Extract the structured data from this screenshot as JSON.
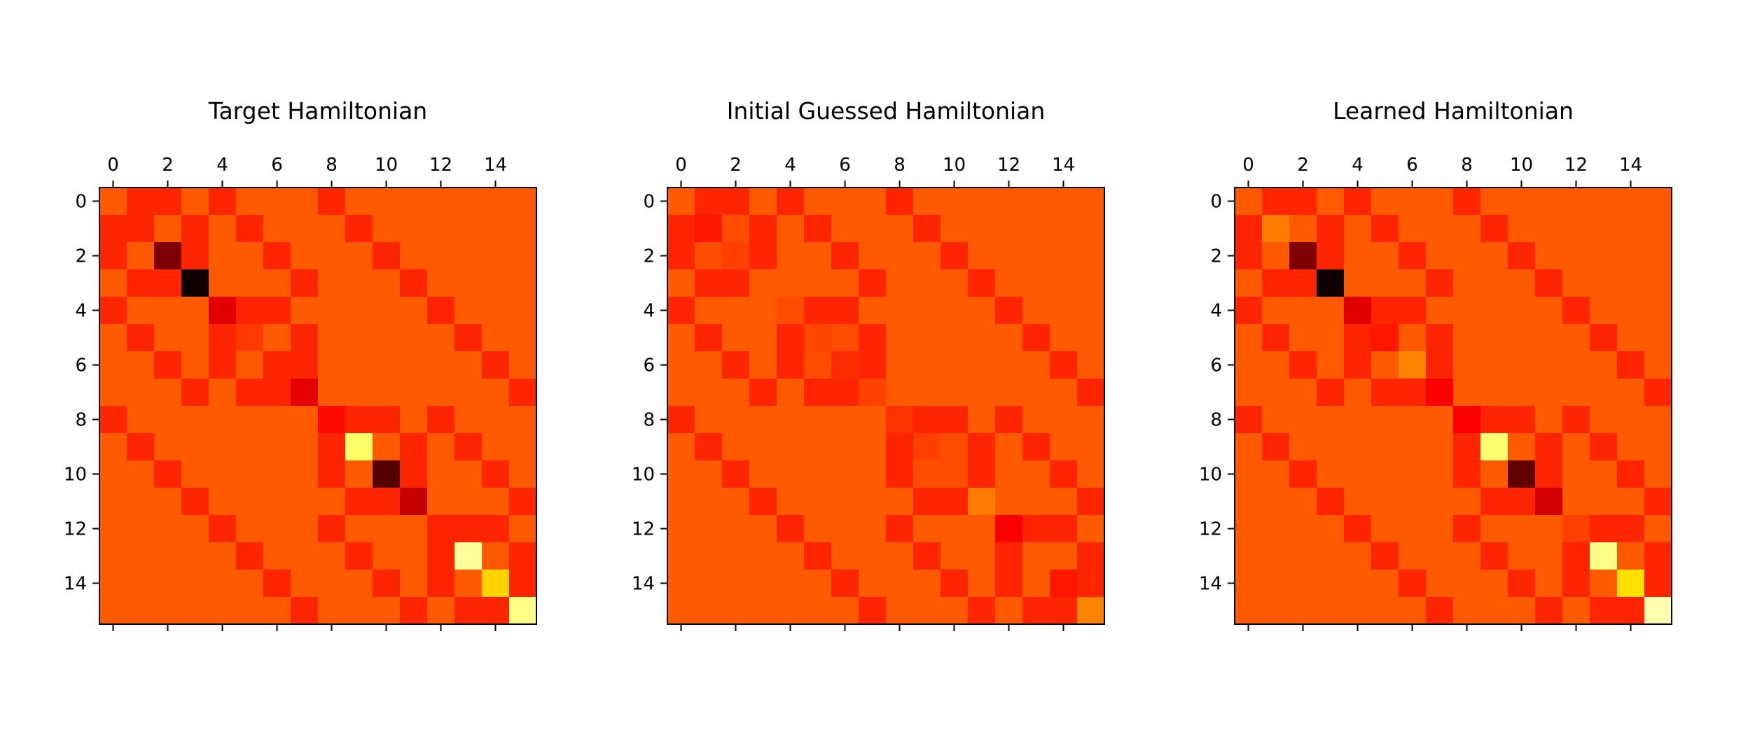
{
  "chart_data": [
    {
      "type": "heatmap",
      "title": "Target Hamiltonian",
      "colormap": "hot",
      "xticks": [
        0,
        2,
        4,
        6,
        8,
        10,
        12,
        14
      ],
      "yticks": [
        0,
        2,
        4,
        6,
        8,
        10,
        12,
        14
      ],
      "x_tick_position": "top",
      "grid": false,
      "matrix": [
        [
          0.5,
          0.42,
          0.42,
          0.5,
          0.42,
          0.5,
          0.5,
          0.5,
          0.42,
          0.5,
          0.5,
          0.5,
          0.5,
          0.5,
          0.5,
          0.5
        ],
        [
          0.42,
          0.42,
          0.5,
          0.42,
          0.5,
          0.42,
          0.5,
          0.5,
          0.5,
          0.42,
          0.5,
          0.5,
          0.5,
          0.5,
          0.5,
          0.5
        ],
        [
          0.42,
          0.5,
          0.18,
          0.42,
          0.5,
          0.5,
          0.42,
          0.5,
          0.5,
          0.5,
          0.42,
          0.5,
          0.5,
          0.5,
          0.5,
          0.5
        ],
        [
          0.5,
          0.42,
          0.42,
          0.02,
          0.5,
          0.5,
          0.5,
          0.42,
          0.5,
          0.5,
          0.5,
          0.42,
          0.5,
          0.5,
          0.5,
          0.5
        ],
        [
          0.42,
          0.5,
          0.5,
          0.5,
          0.32,
          0.42,
          0.42,
          0.5,
          0.5,
          0.5,
          0.5,
          0.5,
          0.42,
          0.5,
          0.5,
          0.5
        ],
        [
          0.5,
          0.42,
          0.5,
          0.5,
          0.42,
          0.45,
          0.5,
          0.42,
          0.5,
          0.5,
          0.5,
          0.5,
          0.5,
          0.42,
          0.5,
          0.5
        ],
        [
          0.5,
          0.5,
          0.42,
          0.5,
          0.42,
          0.5,
          0.42,
          0.42,
          0.5,
          0.5,
          0.5,
          0.5,
          0.5,
          0.5,
          0.42,
          0.5
        ],
        [
          0.5,
          0.5,
          0.5,
          0.42,
          0.5,
          0.42,
          0.42,
          0.33,
          0.5,
          0.5,
          0.5,
          0.5,
          0.5,
          0.5,
          0.5,
          0.42
        ],
        [
          0.42,
          0.5,
          0.5,
          0.5,
          0.5,
          0.5,
          0.5,
          0.5,
          0.38,
          0.42,
          0.42,
          0.5,
          0.42,
          0.5,
          0.5,
          0.5
        ],
        [
          0.5,
          0.42,
          0.5,
          0.5,
          0.5,
          0.5,
          0.5,
          0.5,
          0.42,
          0.85,
          0.5,
          0.42,
          0.5,
          0.42,
          0.5,
          0.5
        ],
        [
          0.5,
          0.5,
          0.42,
          0.5,
          0.5,
          0.5,
          0.5,
          0.5,
          0.42,
          0.5,
          0.12,
          0.42,
          0.5,
          0.5,
          0.42,
          0.5
        ],
        [
          0.5,
          0.5,
          0.5,
          0.42,
          0.5,
          0.5,
          0.5,
          0.5,
          0.5,
          0.42,
          0.42,
          0.28,
          0.5,
          0.5,
          0.5,
          0.42
        ],
        [
          0.5,
          0.5,
          0.5,
          0.5,
          0.42,
          0.5,
          0.5,
          0.5,
          0.42,
          0.5,
          0.5,
          0.5,
          0.42,
          0.42,
          0.42,
          0.5
        ],
        [
          0.5,
          0.5,
          0.5,
          0.5,
          0.5,
          0.42,
          0.5,
          0.5,
          0.5,
          0.42,
          0.5,
          0.5,
          0.42,
          0.9,
          0.5,
          0.42
        ],
        [
          0.5,
          0.5,
          0.5,
          0.5,
          0.5,
          0.5,
          0.42,
          0.5,
          0.5,
          0.5,
          0.42,
          0.5,
          0.42,
          0.5,
          0.68,
          0.42
        ],
        [
          0.5,
          0.5,
          0.5,
          0.5,
          0.5,
          0.5,
          0.5,
          0.42,
          0.5,
          0.5,
          0.5,
          0.42,
          0.5,
          0.42,
          0.42,
          0.88
        ]
      ]
    },
    {
      "type": "heatmap",
      "title": "Initial Guessed Hamiltonian",
      "colormap": "hot",
      "xticks": [
        0,
        2,
        4,
        6,
        8,
        10,
        12,
        14
      ],
      "yticks": [
        0,
        2,
        4,
        6,
        8,
        10,
        12,
        14
      ],
      "x_tick_position": "top",
      "grid": false,
      "matrix": [
        [
          0.5,
          0.42,
          0.42,
          0.5,
          0.42,
          0.5,
          0.5,
          0.5,
          0.42,
          0.5,
          0.5,
          0.5,
          0.5,
          0.5,
          0.5,
          0.5
        ],
        [
          0.42,
          0.4,
          0.48,
          0.42,
          0.5,
          0.42,
          0.5,
          0.5,
          0.5,
          0.42,
          0.5,
          0.5,
          0.5,
          0.5,
          0.5,
          0.5
        ],
        [
          0.42,
          0.48,
          0.46,
          0.42,
          0.5,
          0.5,
          0.42,
          0.5,
          0.5,
          0.5,
          0.42,
          0.5,
          0.5,
          0.5,
          0.5,
          0.5
        ],
        [
          0.5,
          0.42,
          0.42,
          0.5,
          0.5,
          0.5,
          0.5,
          0.42,
          0.5,
          0.5,
          0.5,
          0.42,
          0.5,
          0.5,
          0.5,
          0.5
        ],
        [
          0.42,
          0.5,
          0.5,
          0.5,
          0.48,
          0.42,
          0.42,
          0.5,
          0.5,
          0.5,
          0.5,
          0.5,
          0.42,
          0.5,
          0.5,
          0.5
        ],
        [
          0.5,
          0.42,
          0.5,
          0.5,
          0.42,
          0.47,
          0.48,
          0.42,
          0.5,
          0.5,
          0.5,
          0.5,
          0.5,
          0.42,
          0.5,
          0.5
        ],
        [
          0.5,
          0.5,
          0.42,
          0.5,
          0.42,
          0.48,
          0.43,
          0.42,
          0.5,
          0.5,
          0.5,
          0.5,
          0.5,
          0.5,
          0.42,
          0.5
        ],
        [
          0.5,
          0.5,
          0.5,
          0.42,
          0.5,
          0.42,
          0.42,
          0.46,
          0.5,
          0.5,
          0.5,
          0.5,
          0.5,
          0.5,
          0.5,
          0.42
        ],
        [
          0.42,
          0.5,
          0.5,
          0.5,
          0.5,
          0.5,
          0.5,
          0.5,
          0.44,
          0.42,
          0.42,
          0.5,
          0.42,
          0.5,
          0.5,
          0.5
        ],
        [
          0.5,
          0.42,
          0.5,
          0.5,
          0.5,
          0.5,
          0.5,
          0.5,
          0.42,
          0.46,
          0.48,
          0.42,
          0.5,
          0.42,
          0.5,
          0.5
        ],
        [
          0.5,
          0.5,
          0.42,
          0.5,
          0.5,
          0.5,
          0.5,
          0.5,
          0.42,
          0.48,
          0.48,
          0.42,
          0.5,
          0.5,
          0.42,
          0.5
        ],
        [
          0.5,
          0.5,
          0.5,
          0.42,
          0.5,
          0.5,
          0.5,
          0.5,
          0.5,
          0.42,
          0.42,
          0.55,
          0.5,
          0.5,
          0.5,
          0.42
        ],
        [
          0.5,
          0.5,
          0.5,
          0.5,
          0.42,
          0.5,
          0.5,
          0.5,
          0.42,
          0.5,
          0.5,
          0.5,
          0.36,
          0.42,
          0.42,
          0.5
        ],
        [
          0.5,
          0.5,
          0.5,
          0.5,
          0.5,
          0.42,
          0.5,
          0.5,
          0.5,
          0.42,
          0.5,
          0.5,
          0.42,
          0.5,
          0.5,
          0.42
        ],
        [
          0.5,
          0.5,
          0.5,
          0.5,
          0.5,
          0.5,
          0.42,
          0.5,
          0.5,
          0.5,
          0.42,
          0.5,
          0.42,
          0.5,
          0.4,
          0.42
        ],
        [
          0.5,
          0.5,
          0.5,
          0.5,
          0.5,
          0.5,
          0.5,
          0.42,
          0.5,
          0.5,
          0.5,
          0.42,
          0.5,
          0.42,
          0.42,
          0.56
        ]
      ]
    },
    {
      "type": "heatmap",
      "title": "Learned Hamiltonian",
      "colormap": "hot",
      "xticks": [
        0,
        2,
        4,
        6,
        8,
        10,
        12,
        14
      ],
      "yticks": [
        0,
        2,
        4,
        6,
        8,
        10,
        12,
        14
      ],
      "x_tick_position": "top",
      "grid": false,
      "matrix": [
        [
          0.5,
          0.42,
          0.42,
          0.5,
          0.42,
          0.5,
          0.5,
          0.5,
          0.42,
          0.5,
          0.5,
          0.5,
          0.5,
          0.5,
          0.5,
          0.5
        ],
        [
          0.42,
          0.55,
          0.5,
          0.42,
          0.5,
          0.42,
          0.5,
          0.5,
          0.5,
          0.42,
          0.5,
          0.5,
          0.5,
          0.5,
          0.5,
          0.5
        ],
        [
          0.42,
          0.5,
          0.18,
          0.42,
          0.5,
          0.5,
          0.42,
          0.5,
          0.5,
          0.5,
          0.42,
          0.5,
          0.5,
          0.5,
          0.5,
          0.5
        ],
        [
          0.5,
          0.42,
          0.42,
          0.02,
          0.5,
          0.5,
          0.5,
          0.42,
          0.5,
          0.5,
          0.5,
          0.42,
          0.5,
          0.5,
          0.5,
          0.5
        ],
        [
          0.42,
          0.5,
          0.5,
          0.5,
          0.32,
          0.42,
          0.42,
          0.5,
          0.5,
          0.5,
          0.5,
          0.5,
          0.42,
          0.5,
          0.5,
          0.5
        ],
        [
          0.5,
          0.42,
          0.5,
          0.5,
          0.42,
          0.4,
          0.5,
          0.42,
          0.5,
          0.5,
          0.5,
          0.5,
          0.5,
          0.42,
          0.5,
          0.5
        ],
        [
          0.5,
          0.5,
          0.42,
          0.5,
          0.42,
          0.5,
          0.56,
          0.42,
          0.5,
          0.5,
          0.5,
          0.5,
          0.5,
          0.5,
          0.42,
          0.5
        ],
        [
          0.5,
          0.5,
          0.5,
          0.42,
          0.5,
          0.42,
          0.42,
          0.36,
          0.5,
          0.5,
          0.5,
          0.5,
          0.5,
          0.5,
          0.5,
          0.42
        ],
        [
          0.42,
          0.5,
          0.5,
          0.5,
          0.5,
          0.5,
          0.5,
          0.5,
          0.36,
          0.42,
          0.42,
          0.5,
          0.42,
          0.5,
          0.5,
          0.5
        ],
        [
          0.5,
          0.42,
          0.5,
          0.5,
          0.5,
          0.5,
          0.5,
          0.5,
          0.42,
          0.86,
          0.5,
          0.42,
          0.5,
          0.42,
          0.5,
          0.5
        ],
        [
          0.5,
          0.5,
          0.42,
          0.5,
          0.5,
          0.5,
          0.5,
          0.5,
          0.42,
          0.5,
          0.14,
          0.42,
          0.5,
          0.5,
          0.42,
          0.5
        ],
        [
          0.5,
          0.5,
          0.5,
          0.42,
          0.5,
          0.5,
          0.5,
          0.5,
          0.5,
          0.42,
          0.42,
          0.3,
          0.5,
          0.5,
          0.5,
          0.42
        ],
        [
          0.5,
          0.5,
          0.5,
          0.5,
          0.42,
          0.5,
          0.5,
          0.5,
          0.42,
          0.5,
          0.5,
          0.5,
          0.46,
          0.42,
          0.42,
          0.5
        ],
        [
          0.5,
          0.5,
          0.5,
          0.5,
          0.5,
          0.42,
          0.5,
          0.5,
          0.5,
          0.42,
          0.5,
          0.5,
          0.42,
          0.88,
          0.5,
          0.42
        ],
        [
          0.5,
          0.5,
          0.5,
          0.5,
          0.5,
          0.5,
          0.42,
          0.5,
          0.5,
          0.5,
          0.42,
          0.5,
          0.42,
          0.5,
          0.7,
          0.42
        ],
        [
          0.5,
          0.5,
          0.5,
          0.5,
          0.5,
          0.5,
          0.5,
          0.42,
          0.5,
          0.5,
          0.5,
          0.42,
          0.5,
          0.42,
          0.42,
          0.92
        ]
      ]
    }
  ]
}
